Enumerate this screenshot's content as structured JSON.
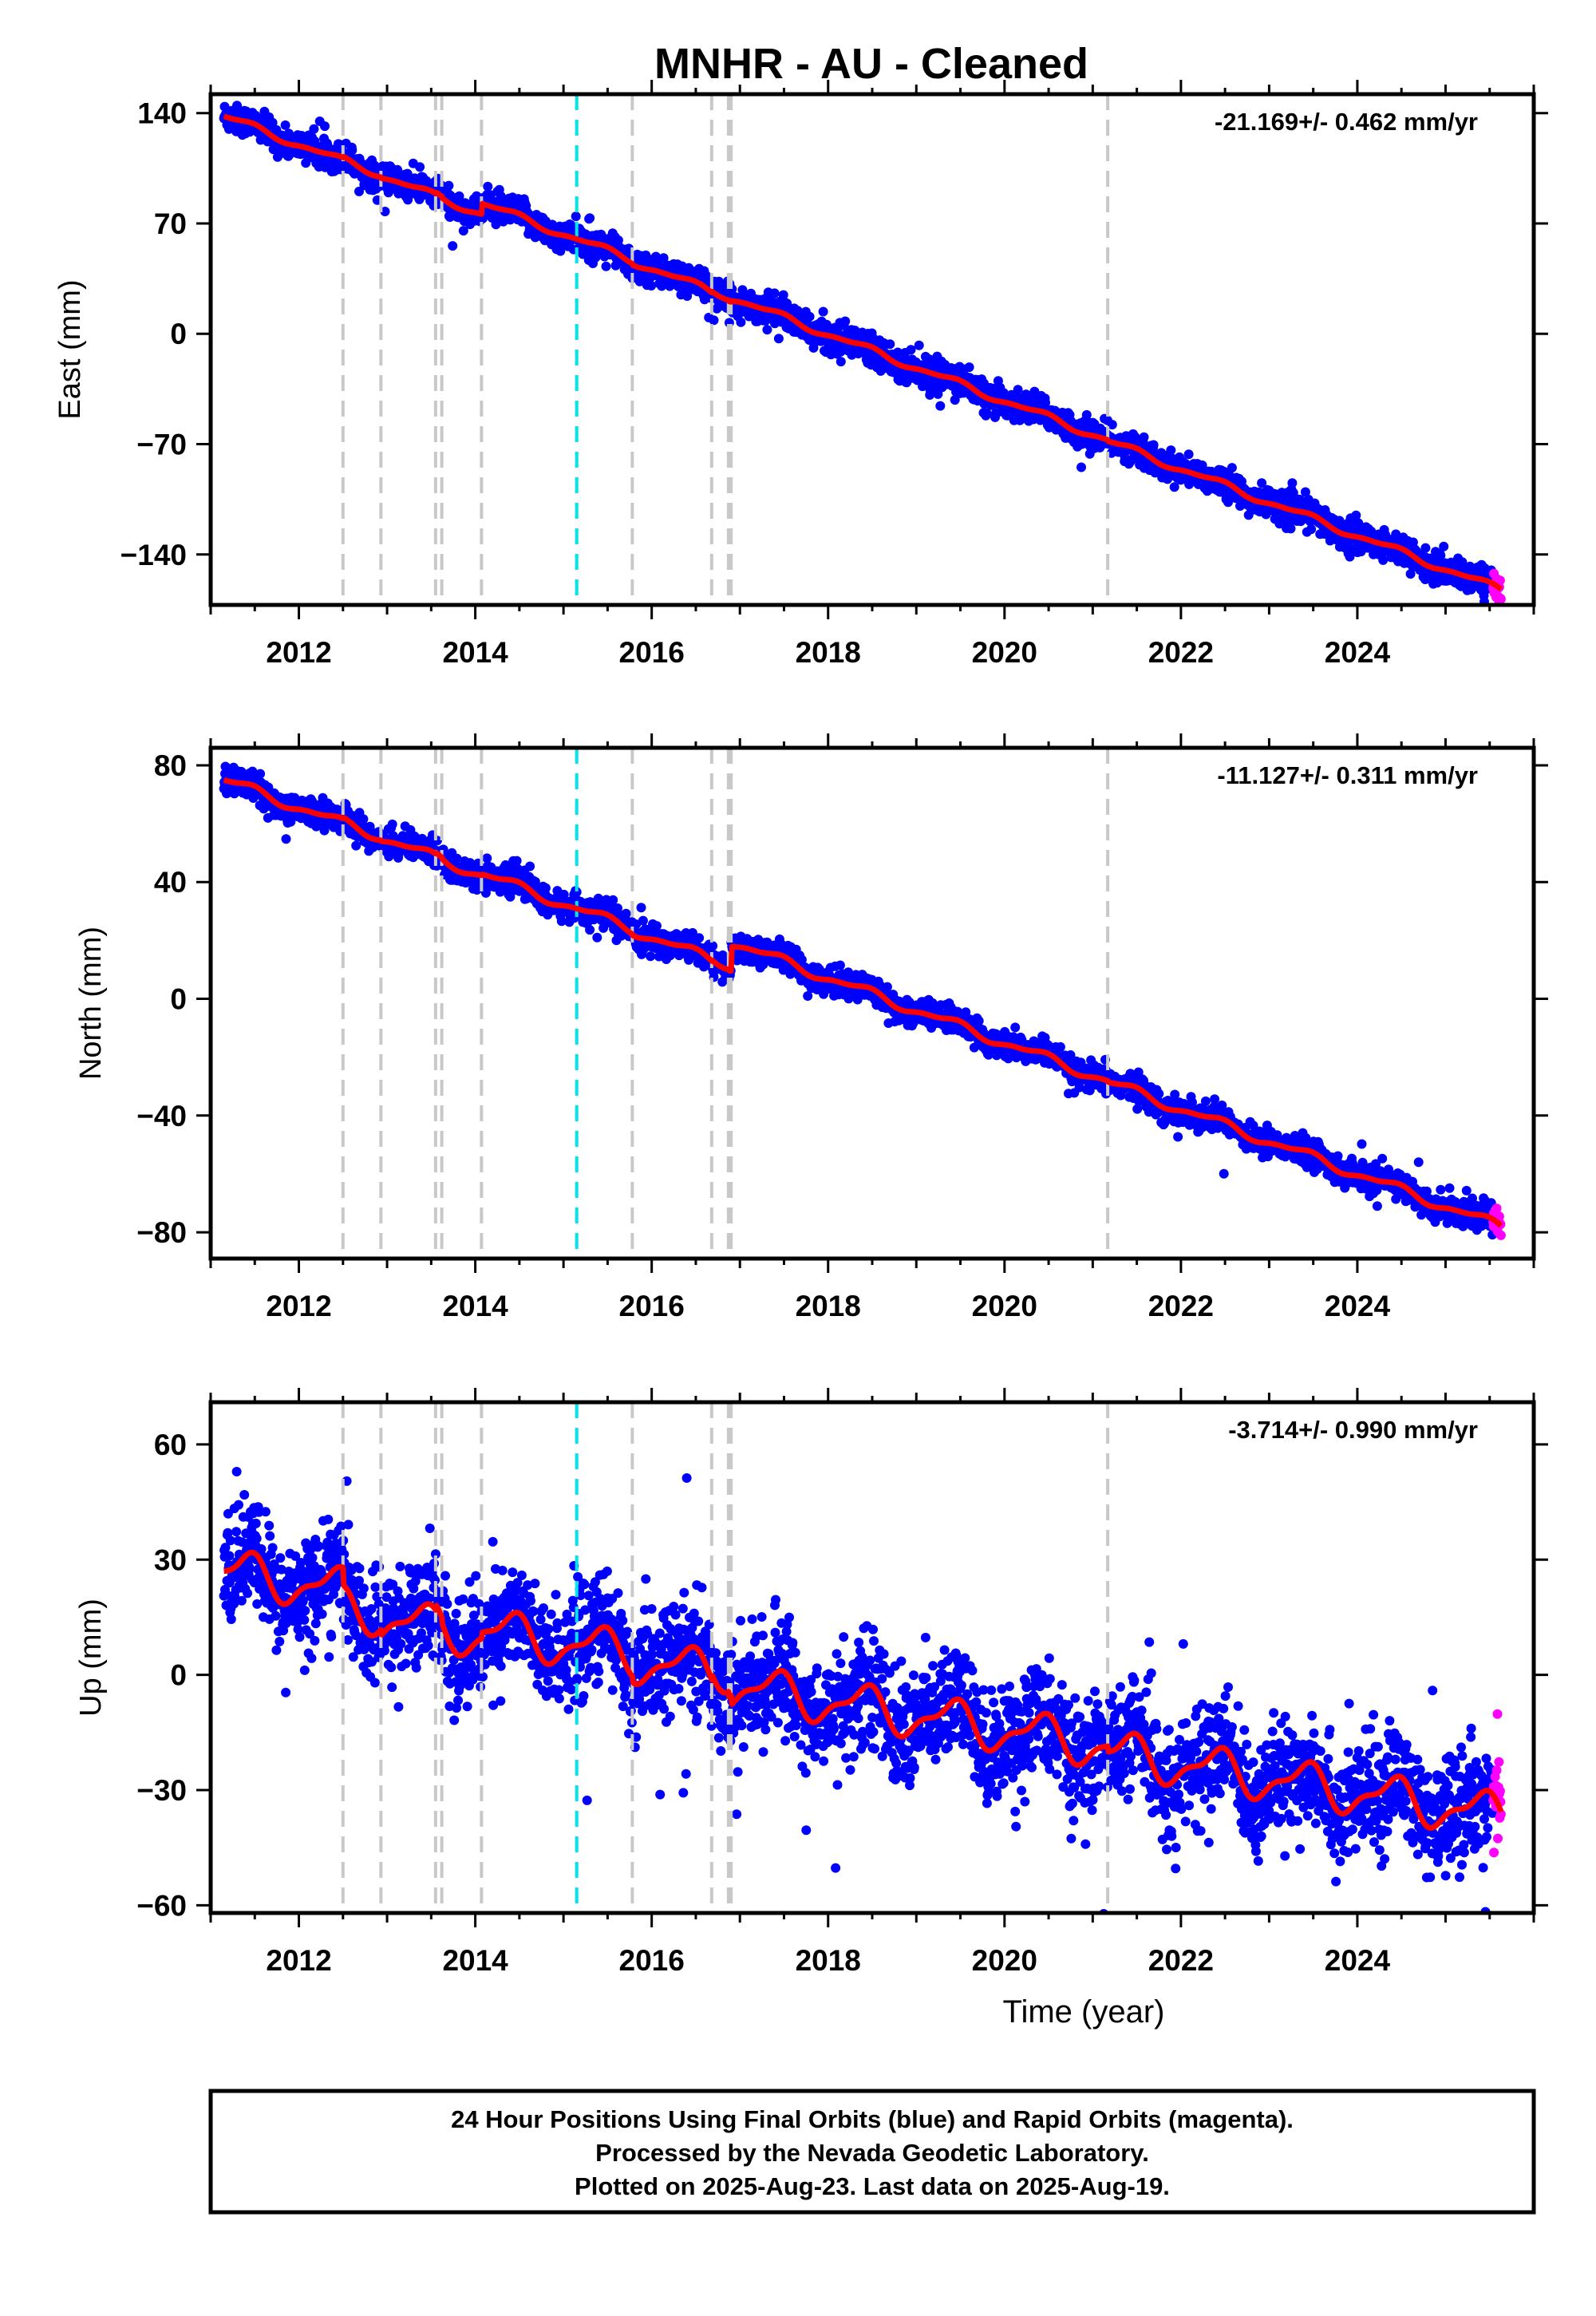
{
  "title": "MNHR  - AU - Cleaned",
  "colors": {
    "final_orbits": "#0000ff",
    "rapid_orbits": "#ff00ff",
    "model_fit": "#ff0000",
    "equipment_change": "#c8c8c8",
    "earthquake": "#00e5ee"
  },
  "footer": {
    "line1": "24 Hour Positions Using Final Orbits (blue) and Rapid Orbits (magenta).",
    "line2": "Processed by the Nevada Geodetic Laboratory.",
    "line3": "Plotted on 2025-Aug-23. Last data on 2025-Aug-19."
  },
  "chart_data": [
    {
      "type": "scatter",
      "ylabel": "East (mm)",
      "xlabel": "",
      "rate": "-21.169+/- 0.462 mm/yr",
      "xlim": [
        2011.0,
        2026.0
      ],
      "ylim": [
        -172,
        152
      ],
      "yticks": [
        140,
        70,
        0,
        -70,
        -140
      ],
      "xticks": [
        2012,
        2014,
        2016,
        2018,
        2020,
        2022,
        2024
      ],
      "start": 2011.15,
      "end": 2025.63,
      "rapid_start": 2025.54,
      "trend_start": 138,
      "trend_slope": -21.169,
      "seasonal_amplitude": 2.0,
      "scatter_sd": 4.5,
      "offsets": [
        {
          "x": 2014.07,
          "y": 6
        }
      ],
      "steps_at_equipment_changes": 1.5,
      "series": [
        {
          "name": "Final Orbits",
          "color": "#0000ff"
        },
        {
          "name": "Rapid Orbits",
          "color": "#ff00ff"
        }
      ]
    },
    {
      "type": "scatter",
      "ylabel": "North (mm)",
      "xlabel": "",
      "rate": "-11.127+/- 0.311 mm/yr",
      "xlim": [
        2011.0,
        2026.0
      ],
      "ylim": [
        -89,
        86
      ],
      "yticks": [
        80,
        40,
        0,
        -40,
        -80
      ],
      "xticks": [
        2012,
        2014,
        2016,
        2018,
        2020,
        2022,
        2024
      ],
      "start": 2011.15,
      "end": 2025.63,
      "rapid_start": 2025.54,
      "trend_start": 75,
      "trend_slope": -11.127,
      "seasonal_amplitude": 1.5,
      "scatter_sd": 2.2,
      "offsets": [
        {
          "x": 2016.9,
          "y": 8
        }
      ],
      "steps_at_equipment_changes": 0.8,
      "series": [
        {
          "name": "Final Orbits",
          "color": "#0000ff"
        },
        {
          "name": "Rapid Orbits",
          "color": "#ff00ff"
        }
      ]
    },
    {
      "type": "scatter",
      "ylabel": "Up (mm)",
      "xlabel": "Time (year)",
      "rate": "-3.714+/- 0.990 mm/yr",
      "xlim": [
        2011.0,
        2026.0
      ],
      "ylim": [
        -62,
        71
      ],
      "yticks": [
        60,
        30,
        0,
        -30,
        -60
      ],
      "xticks": [
        2012,
        2014,
        2016,
        2018,
        2020,
        2022,
        2024
      ],
      "start": 2011.15,
      "end": 2025.63,
      "rapid_start": 2025.54,
      "trend_start": 27,
      "trend_slope": -3.714,
      "seasonal_amplitude": 5.0,
      "scatter_sd": 7.0,
      "offsets": [
        {
          "x": 2012.5,
          "y": -6
        },
        {
          "x": 2016.9,
          "y": -4
        }
      ],
      "steps_at_equipment_changes": 3,
      "series": [
        {
          "name": "Final Orbits",
          "color": "#0000ff"
        },
        {
          "name": "Rapid Orbits",
          "color": "#ff00ff"
        }
      ]
    }
  ],
  "equipment_changes": [
    2012.5,
    2012.93,
    2013.55,
    2013.62,
    2014.07,
    2015.78,
    2016.68,
    2016.87,
    2016.9,
    2021.17
  ],
  "earthquakes": [
    2015.15
  ]
}
